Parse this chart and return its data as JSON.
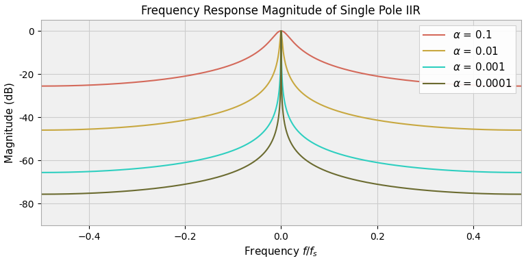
{
  "title": "Frequency Response Magnitude of Single Pole IIR",
  "xlabel": "Frequency $f/f_s$",
  "ylabel": "Magnitude (dB)",
  "alphas": [
    0.1,
    0.01,
    0.001,
    0.0001
  ],
  "colors": [
    "#d4695a",
    "#c8a840",
    "#2ecfc0",
    "#6b6b30"
  ],
  "legend_labels": [
    "α = 0.1",
    "α = 0.01",
    "α = 0.001",
    "α = 0.0001"
  ],
  "xlim": [
    -0.5,
    0.5
  ],
  "ylim": [
    -90,
    5
  ],
  "yticks": [
    0,
    -20,
    -40,
    -60,
    -80
  ],
  "xticks": [
    -0.4,
    -0.2,
    0.0,
    0.2,
    0.4
  ],
  "background_color": "#ffffff",
  "axes_background": "#f0f0f0",
  "grid_color": "#cccccc",
  "figsize": [
    7.68,
    3.84
  ],
  "dpi": 100
}
